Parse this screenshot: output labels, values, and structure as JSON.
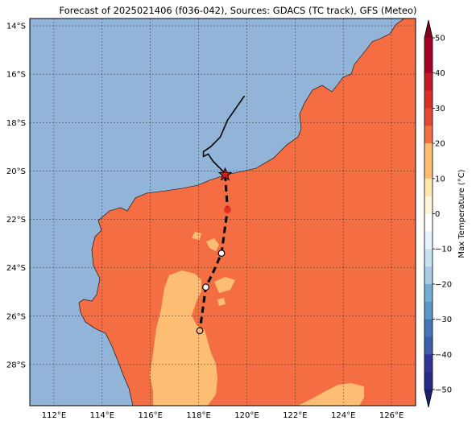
{
  "title": "Forecast of 2025021406 (f036-042), Sources: GDACS (TC track), GFS (Meteo)",
  "map": {
    "lon_range": [
      111,
      127
    ],
    "lat_range": [
      -29.7,
      -13.7
    ],
    "lon_ticks": [
      112,
      114,
      116,
      118,
      120,
      122,
      124,
      126
    ],
    "lon_tick_labels": [
      "112°E",
      "114°E",
      "116°E",
      "118°E",
      "120°E",
      "122°E",
      "124°E",
      "126°E"
    ],
    "lat_ticks": [
      -14,
      -16,
      -18,
      -20,
      -22,
      -24,
      -26,
      -28
    ],
    "lat_tick_labels": [
      "14°S",
      "16°S",
      "18°S",
      "20°S",
      "22°S",
      "24°S",
      "26°S",
      "28°S"
    ],
    "gridlines": true,
    "colors": {
      "ocean": "#92b4d8",
      "land_20_30": "#f46d43",
      "land_10_20": "#fdbe73",
      "track": "#000000",
      "current_position": "#d7191c"
    }
  },
  "colorbar": {
    "label": "Max Temperature (°C)",
    "ticks": [
      50,
      40,
      30,
      20,
      10,
      0,
      -10,
      -20,
      -30,
      -40,
      -50
    ],
    "tick_labels": [
      "50",
      "40",
      "30",
      "20",
      "10",
      "0",
      "−10",
      "−20",
      "−30",
      "−40",
      "−50"
    ],
    "levels": [
      {
        "from": 45,
        "to": 50,
        "color": "#a50026"
      },
      {
        "from": 40,
        "to": 45,
        "color": "#a50026"
      },
      {
        "from": 35,
        "to": 40,
        "color": "#c21b27"
      },
      {
        "from": 30,
        "to": 35,
        "color": "#d73027"
      },
      {
        "from": 25,
        "to": 30,
        "color": "#e34a33"
      },
      {
        "from": 20,
        "to": 25,
        "color": "#f46d43"
      },
      {
        "from": 15,
        "to": 20,
        "color": "#fdbe73"
      },
      {
        "from": 10,
        "to": 15,
        "color": "#fdbe73"
      },
      {
        "from": 5,
        "to": 10,
        "color": "#fee8b0"
      },
      {
        "from": 0,
        "to": 5,
        "color": "#fff5d8"
      },
      {
        "from": -5,
        "to": 0,
        "color": "#ffffff"
      },
      {
        "from": -10,
        "to": -5,
        "color": "#e8f4fb"
      },
      {
        "from": -15,
        "to": -10,
        "color": "#c6e3ef"
      },
      {
        "from": -20,
        "to": -15,
        "color": "#a8cde4"
      },
      {
        "from": -25,
        "to": -20,
        "color": "#74add1"
      },
      {
        "from": -30,
        "to": -25,
        "color": "#5d95c4"
      },
      {
        "from": -35,
        "to": -30,
        "color": "#4575b4"
      },
      {
        "from": -40,
        "to": -35,
        "color": "#3b5fa8"
      },
      {
        "from": -45,
        "to": -40,
        "color": "#313695"
      },
      {
        "from": -50,
        "to": -45,
        "color": "#262a82"
      }
    ],
    "min_arrow_color": "#1a1f6a",
    "max_arrow_color": "#800020"
  },
  "track": {
    "past": [
      {
        "lon": 119.9,
        "lat": -16.9
      },
      {
        "lon": 119.2,
        "lat": -17.9
      },
      {
        "lon": 118.9,
        "lat": -18.6
      },
      {
        "lon": 118.5,
        "lat": -19.0
      },
      {
        "lon": 118.2,
        "lat": -19.2
      },
      {
        "lon": 118.2,
        "lat": -19.4
      },
      {
        "lon": 118.4,
        "lat": -19.3
      },
      {
        "lon": 118.6,
        "lat": -19.6
      },
      {
        "lon": 119.1,
        "lat": -20.1
      }
    ],
    "current": {
      "lon": 119.1,
      "lat": -20.15
    },
    "forecast": [
      {
        "lon": 119.1,
        "lat": -20.15
      },
      {
        "lon": 119.2,
        "lat": -21.6
      },
      {
        "lon": 118.95,
        "lat": -23.4
      },
      {
        "lon": 118.6,
        "lat": -24.2
      },
      {
        "lon": 118.3,
        "lat": -24.8
      },
      {
        "lon": 118.05,
        "lat": -26.6
      }
    ],
    "forecast_points": [
      {
        "lon": 119.2,
        "lat": -21.6,
        "fill": "#e62d20",
        "stroke": "#e62d20"
      },
      {
        "lon": 118.95,
        "lat": -23.4,
        "fill": "#ffffff",
        "stroke": "#000000"
      },
      {
        "lon": 118.3,
        "lat": -24.8,
        "fill": "#ffffff",
        "stroke": "#000000"
      },
      {
        "lon": 118.05,
        "lat": -26.6,
        "fill": "#fdbe73",
        "stroke": "#000000"
      }
    ]
  }
}
